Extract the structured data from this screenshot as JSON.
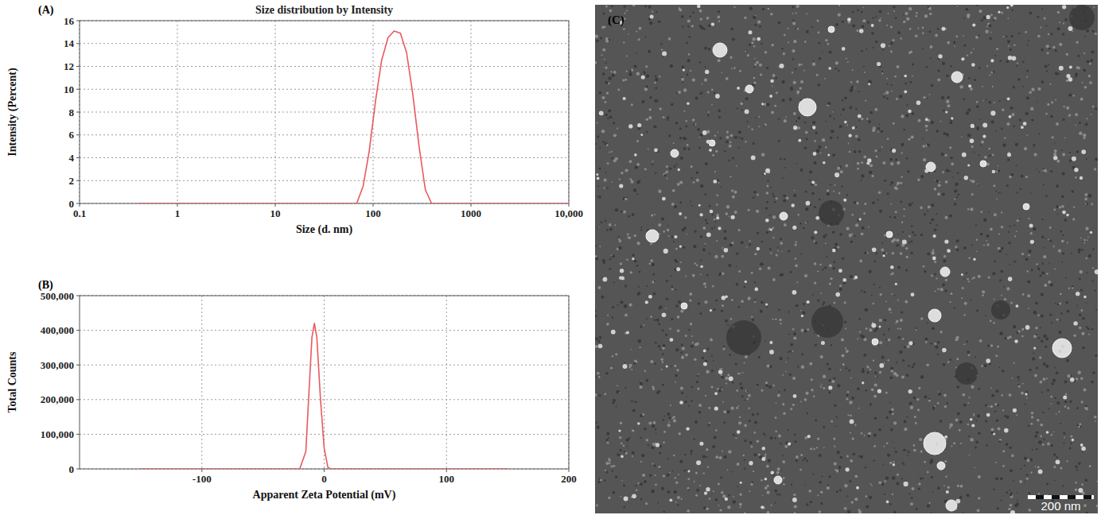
{
  "chart_data": [
    {
      "type": "line",
      "label": "(A)",
      "title": "Size distribution by Intensity",
      "x_label": "Size (d. nm)",
      "y_label": "Intensity (Percent)",
      "log": "x",
      "grid": true,
      "color": "#e8595e",
      "xlim": [
        0.1,
        10000
      ],
      "xticks": [
        0.1,
        1,
        10,
        100,
        1000,
        {
          "value": 10000,
          "label": "10,000"
        }
      ],
      "ylim": [
        0,
        16
      ],
      "yticks": [
        0,
        2,
        4,
        6,
        8,
        10,
        12,
        14,
        16
      ],
      "x": [
        0.4,
        1,
        10,
        50,
        68,
        79,
        91,
        106,
        122,
        142,
        164,
        190,
        220,
        255,
        295,
        342,
        396,
        1000,
        10000
      ],
      "values": [
        0,
        0,
        0,
        0,
        0,
        1.5,
        4.5,
        9,
        12.5,
        14.5,
        15.1,
        14.9,
        13.2,
        9.5,
        5,
        1.2,
        0,
        0,
        0
      ]
    },
    {
      "type": "line",
      "label": "(B)",
      "x_label": "Apparent Zeta Potential (mV)",
      "y_label": "Total Counts",
      "grid": true,
      "color": "#e8595e",
      "xlim": [
        -200,
        200
      ],
      "xticks": [
        -100,
        0,
        100,
        200
      ],
      "ylim": [
        0,
        500000
      ],
      "yticks": [
        0,
        {
          "value": 100000,
          "label": "100,000"
        },
        {
          "value": 200000,
          "label": "200,000"
        },
        {
          "value": 300000,
          "label": "300,000"
        },
        {
          "value": 400000,
          "label": "400,000"
        },
        {
          "value": 500000,
          "label": "500,000"
        }
      ],
      "x": [
        -150,
        -20,
        -15,
        -12,
        -10,
        -8,
        -6,
        -3,
        0,
        3,
        5,
        150
      ],
      "values": [
        0,
        0,
        50000,
        250000,
        380000,
        420000,
        380000,
        200000,
        60000,
        5000,
        0,
        0
      ]
    }
  ],
  "image": {
    "label": "(C)",
    "scale_bar": "200 nm"
  }
}
